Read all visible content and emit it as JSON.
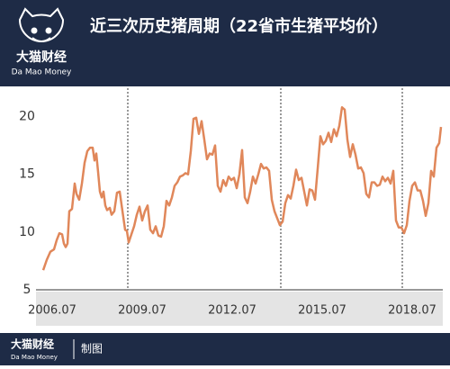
{
  "header": {
    "brand": "大猫财经",
    "brand_en": "Da Mao Money"
  },
  "footer": {
    "brand": "大猫财经",
    "brand_en": "Da Mao Money",
    "credit": "制图"
  },
  "chart_data": {
    "type": "line",
    "title": "近三次历史猪周期（22省市生猪平均价）",
    "color": "#e0875a",
    "xlim": [
      2005.96,
      2019.52
    ],
    "ylim": [
      5,
      22.3
    ],
    "yticks": [
      5,
      10,
      15,
      20
    ],
    "xticks": [
      {
        "value": 2006.5,
        "label": "2006.07"
      },
      {
        "value": 2009.5,
        "label": "2009.07"
      },
      {
        "value": 2012.5,
        "label": "2012.07"
      },
      {
        "value": 2015.5,
        "label": "2015.07"
      },
      {
        "value": 2018.5,
        "label": "2018.07"
      }
    ],
    "reference_lines": [
      2009.02,
      2014.12,
      2018.17
    ],
    "x": [
      2006.2,
      2006.32,
      2006.44,
      2006.56,
      2006.65,
      2006.74,
      2006.83,
      2006.89,
      2006.95,
      2007.01,
      2007.07,
      2007.16,
      2007.25,
      2007.31,
      2007.4,
      2007.49,
      2007.58,
      2007.67,
      2007.76,
      2007.85,
      2007.91,
      2007.97,
      2008.03,
      2008.09,
      2008.15,
      2008.21,
      2008.27,
      2008.33,
      2008.42,
      2008.48,
      2008.57,
      2008.66,
      2008.75,
      2008.81,
      2008.87,
      2008.93,
      2008.99,
      2009.05,
      2009.14,
      2009.23,
      2009.32,
      2009.41,
      2009.5,
      2009.59,
      2009.68,
      2009.77,
      2009.86,
      2009.95,
      2010.04,
      2010.13,
      2010.22,
      2010.31,
      2010.4,
      2010.49,
      2010.58,
      2010.67,
      2010.76,
      2010.85,
      2010.94,
      2011.03,
      2011.12,
      2011.21,
      2011.3,
      2011.39,
      2011.48,
      2011.57,
      2011.66,
      2011.75,
      2011.84,
      2011.93,
      2012.02,
      2012.11,
      2012.2,
      2012.29,
      2012.38,
      2012.47,
      2012.56,
      2012.65,
      2012.74,
      2012.83,
      2012.92,
      2013.01,
      2013.1,
      2013.19,
      2013.28,
      2013.37,
      2013.46,
      2013.55,
      2013.64,
      2013.73,
      2013.82,
      2013.91,
      2014.0,
      2014.09,
      2014.18,
      2014.27,
      2014.36,
      2014.45,
      2014.54,
      2014.63,
      2014.72,
      2014.81,
      2014.9,
      2014.99,
      2015.08,
      2015.17,
      2015.26,
      2015.35,
      2015.44,
      2015.53,
      2015.62,
      2015.71,
      2015.8,
      2015.89,
      2015.98,
      2016.07,
      2016.16,
      2016.25,
      2016.34,
      2016.43,
      2016.52,
      2016.61,
      2016.7,
      2016.79,
      2016.88,
      2016.97,
      2017.06,
      2017.15,
      2017.24,
      2017.33,
      2017.42,
      2017.51,
      2017.6,
      2017.69,
      2017.78,
      2017.87,
      2017.96,
      2018.05,
      2018.14,
      2018.23,
      2018.32,
      2018.41,
      2018.5,
      2018.59,
      2018.68,
      2018.77,
      2018.86,
      2018.95,
      2019.04,
      2019.13,
      2019.22,
      2019.31,
      2019.4,
      2019.46
    ],
    "values": [
      6.7,
      7.6,
      8.3,
      8.5,
      9.3,
      9.9,
      9.8,
      9.0,
      8.7,
      9.0,
      11.8,
      12.0,
      14.2,
      13.3,
      12.8,
      14.2,
      16.0,
      17.0,
      17.3,
      17.3,
      16.2,
      16.8,
      15.2,
      13.5,
      13.0,
      13.5,
      12.3,
      11.9,
      12.1,
      11.5,
      11.8,
      13.4,
      13.5,
      12.4,
      11.3,
      10.2,
      10.1,
      9.1,
      9.8,
      10.5,
      11.5,
      12.2,
      11.0,
      11.8,
      12.3,
      10.2,
      9.9,
      10.5,
      9.7,
      9.6,
      10.5,
      12.7,
      12.3,
      13.0,
      14.0,
      14.3,
      14.8,
      14.9,
      15.1,
      15.0,
      17.0,
      19.8,
      19.9,
      18.5,
      19.6,
      18.0,
      16.3,
      16.8,
      16.7,
      17.5,
      14.0,
      13.5,
      14.5,
      14.0,
      14.8,
      14.5,
      14.7,
      13.8,
      15.0,
      17.1,
      13.0,
      12.5,
      13.5,
      14.8,
      14.2,
      15.0,
      15.9,
      15.5,
      15.6,
      15.3,
      12.8,
      11.8,
      11.2,
      10.6,
      10.9,
      12.5,
      13.2,
      12.9,
      14.0,
      15.4,
      14.5,
      14.7,
      13.5,
      12.3,
      13.7,
      13.6,
      12.8,
      15.5,
      18.3,
      17.6,
      17.9,
      18.6,
      17.8,
      18.9,
      18.3,
      19.2,
      20.8,
      20.6,
      18.0,
      16.5,
      17.6,
      16.7,
      15.5,
      15.6,
      15.1,
      13.3,
      13.0,
      14.3,
      14.3,
      14.0,
      14.1,
      14.8,
      14.4,
      14.7,
      14.2,
      15.3,
      11.0,
      10.4,
      10.4,
      9.9,
      10.6,
      12.7,
      14.0,
      14.3,
      13.6,
      13.6,
      12.7,
      11.4,
      12.5,
      15.3,
      14.8,
      17.3,
      17.7,
      19.1
    ]
  }
}
